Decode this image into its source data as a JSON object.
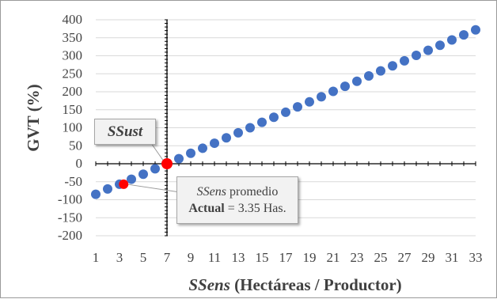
{
  "chart_data": {
    "type": "scatter",
    "xlabel_italic": "SSens",
    "xlabel_rest": " (Hectáreas / Productor)",
    "ylabel": "GVT (%)",
    "xlim": [
      1,
      33
    ],
    "ylim": [
      -200,
      400
    ],
    "x_ticks": [
      1,
      3,
      5,
      7,
      9,
      11,
      13,
      15,
      17,
      19,
      21,
      23,
      25,
      27,
      29,
      31,
      33
    ],
    "y_ticks": [
      400,
      350,
      300,
      250,
      200,
      150,
      100,
      50,
      0,
      -50,
      -100,
      -150,
      -200
    ],
    "series_color": "#4472c4",
    "highlight_color": "#ff0000",
    "points": {
      "x": [
        1,
        2,
        3,
        4,
        5,
        6,
        7,
        8,
        9,
        10,
        11,
        12,
        13,
        14,
        15,
        16,
        17,
        18,
        19,
        20,
        21,
        22,
        23,
        24,
        25,
        26,
        27,
        28,
        29,
        30,
        31,
        32,
        33
      ],
      "y": [
        -85,
        -70,
        -57,
        -43,
        -29,
        -14,
        0,
        14,
        29,
        43,
        57,
        72,
        86,
        100,
        115,
        129,
        143,
        158,
        172,
        186,
        201,
        215,
        229,
        244,
        258,
        272,
        286,
        301,
        315,
        329,
        344,
        358,
        372
      ]
    },
    "highlights": [
      {
        "x": 7,
        "y": 0
      },
      {
        "x": 3.35,
        "y": -57
      }
    ],
    "annotations": {
      "ssust": "SSust",
      "ssens_italic": "SSens",
      "ssens_rest": " promedio",
      "actual_bold": "Actual",
      "actual_rest": " = 3.35 Has."
    }
  }
}
